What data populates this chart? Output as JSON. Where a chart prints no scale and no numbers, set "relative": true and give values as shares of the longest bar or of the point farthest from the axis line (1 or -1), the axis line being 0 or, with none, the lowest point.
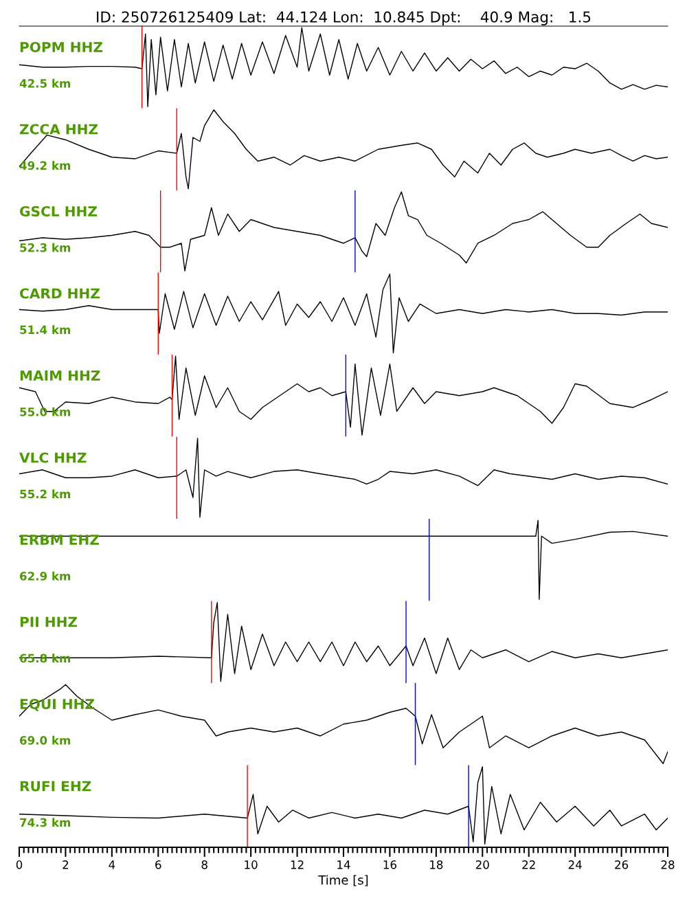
{
  "chart_data": [
    {
      "type": "line",
      "relative": true,
      "title": "ID: 250726125409 Lat:  44.124 Lon:  10.845 Dpt:    40.9 Mag:   1.5",
      "annotations": [
        "POPM HHZ",
        "42.5 km"
      ],
      "xlim": [
        0,
        28
      ],
      "tick_labels": false,
      "series": [
        {
          "color": "#000000",
          "x": [
            0,
            1,
            2,
            3,
            4,
            5,
            5.3,
            5.45,
            5.55,
            5.7,
            5.9,
            6.1,
            6.4,
            6.7,
            7.0,
            7.3,
            7.6,
            8.0,
            8.4,
            8.8,
            9.2,
            9.6,
            10.0,
            10.5,
            11.0,
            11.5,
            12.0,
            12.2,
            12.5,
            13.0,
            13.4,
            13.8,
            14.2,
            14.6,
            15.0,
            15.5,
            16.0,
            16.5,
            17.0,
            17.5,
            18.0,
            18.5,
            19.0,
            19.5,
            20.0,
            20.5,
            21.0,
            21.5,
            22.0,
            22.5,
            23.0,
            23.5,
            24.0,
            24.5,
            25.0,
            25.5,
            26.0,
            26.5,
            27.0,
            27.5,
            28.0
          ],
          "values": [
            0.53,
            0.5,
            0.5,
            0.51,
            0.51,
            0.5,
            0.48,
            0.92,
            0.0,
            0.85,
            0.15,
            0.88,
            0.2,
            0.85,
            0.25,
            0.8,
            0.3,
            0.82,
            0.32,
            0.78,
            0.35,
            0.8,
            0.4,
            0.82,
            0.42,
            0.9,
            0.5,
            1.0,
            0.45,
            0.92,
            0.4,
            0.85,
            0.35,
            0.8,
            0.45,
            0.75,
            0.4,
            0.7,
            0.45,
            0.68,
            0.45,
            0.62,
            0.45,
            0.6,
            0.48,
            0.58,
            0.42,
            0.5,
            0.38,
            0.45,
            0.4,
            0.5,
            0.48,
            0.55,
            0.45,
            0.3,
            0.22,
            0.28,
            0.22,
            0.27,
            0.25
          ]
        }
      ],
      "ref_lines": [
        {
          "axis": "x",
          "value": 5.3,
          "color": "#ff0000"
        }
      ]
    },
    {
      "type": "line",
      "relative": true,
      "annotations": [
        "ZCCA HHZ",
        "49.2 km"
      ],
      "xlim": [
        0,
        28
      ],
      "tick_labels": false,
      "series": [
        {
          "color": "#000000",
          "x": [
            0,
            0.5,
            1.2,
            2.0,
            3.0,
            4.0,
            5.0,
            6.0,
            6.8,
            7.0,
            7.2,
            7.3,
            7.5,
            7.8,
            8.0,
            8.4,
            8.8,
            9.3,
            9.8,
            10.3,
            11,
            11.7,
            12.3,
            13,
            13.8,
            14.5,
            15.5,
            16.5,
            17.2,
            17.8,
            18.3,
            18.8,
            19.2,
            19.8,
            20.3,
            20.8,
            21.3,
            21.8,
            22.3,
            22.8,
            23.5,
            24,
            24.7,
            25.5,
            26,
            26.5,
            27,
            27.5,
            28
          ],
          "values": [
            0.28,
            0.45,
            0.68,
            0.62,
            0.5,
            0.4,
            0.38,
            0.48,
            0.45,
            0.7,
            0.15,
            0.0,
            0.65,
            0.6,
            0.8,
            1.0,
            0.85,
            0.7,
            0.5,
            0.35,
            0.4,
            0.3,
            0.42,
            0.35,
            0.4,
            0.35,
            0.5,
            0.55,
            0.58,
            0.5,
            0.3,
            0.15,
            0.35,
            0.2,
            0.45,
            0.3,
            0.5,
            0.58,
            0.45,
            0.4,
            0.45,
            0.5,
            0.45,
            0.5,
            0.42,
            0.35,
            0.42,
            0.38,
            0.4
          ]
        }
      ],
      "ref_lines": [
        {
          "axis": "x",
          "value": 6.8,
          "color": "#ff0000"
        }
      ]
    },
    {
      "type": "line",
      "relative": true,
      "annotations": [
        "GSCL HHZ",
        "52.3 km"
      ],
      "xlim": [
        0,
        28
      ],
      "tick_labels": false,
      "series": [
        {
          "color": "#000000",
          "x": [
            0,
            1,
            2,
            3,
            4,
            5,
            5.6,
            6.1,
            6.5,
            7.0,
            7.15,
            7.4,
            8.0,
            8.3,
            8.6,
            9.0,
            9.5,
            10,
            11,
            12,
            13,
            14,
            14.5,
            14.8,
            15,
            15.4,
            15.8,
            16.2,
            16.5,
            16.8,
            17.2,
            17.6,
            18.2,
            19.0,
            19.3,
            19.8,
            20.5,
            21.3,
            22,
            22.6,
            23.2,
            23.8,
            24.5,
            25,
            25.5,
            26.2,
            26.8,
            27.3,
            28
          ],
          "values": [
            0.38,
            0.42,
            0.4,
            0.42,
            0.45,
            0.5,
            0.45,
            0.3,
            0.3,
            0.35,
            0.0,
            0.4,
            0.45,
            0.8,
            0.45,
            0.72,
            0.5,
            0.65,
            0.55,
            0.5,
            0.45,
            0.35,
            0.42,
            0.25,
            0.18,
            0.6,
            0.45,
            0.8,
            1.0,
            0.7,
            0.65,
            0.45,
            0.35,
            0.2,
            0.1,
            0.35,
            0.45,
            0.6,
            0.65,
            0.75,
            0.6,
            0.45,
            0.3,
            0.3,
            0.45,
            0.6,
            0.72,
            0.6,
            0.55
          ]
        }
      ],
      "ref_lines": [
        {
          "axis": "x",
          "value": 6.1,
          "color": "#ff0000"
        },
        {
          "axis": "x",
          "value": 14.5,
          "color": "#0000ff"
        }
      ]
    },
    {
      "type": "line",
      "relative": true,
      "annotations": [
        "CARD HHZ",
        "51.4 km"
      ],
      "xlim": [
        0,
        28
      ],
      "tick_labels": false,
      "series": [
        {
          "color": "#000000",
          "x": [
            0,
            1,
            2,
            3,
            4,
            5,
            6.0,
            6.05,
            6.3,
            6.7,
            7.1,
            7.5,
            8.0,
            8.5,
            9.0,
            9.5,
            10,
            10.5,
            11.2,
            11.5,
            12,
            12.5,
            13,
            13.5,
            14,
            14.5,
            15,
            15.4,
            15.7,
            16.0,
            16.15,
            16.4,
            16.8,
            17.3,
            18,
            19,
            20,
            21,
            22,
            23,
            24,
            25,
            26,
            27,
            28
          ],
          "values": [
            0.55,
            0.53,
            0.55,
            0.6,
            0.55,
            0.55,
            0.55,
            0.25,
            0.75,
            0.3,
            0.78,
            0.32,
            0.75,
            0.35,
            0.72,
            0.4,
            0.65,
            0.42,
            0.78,
            0.35,
            0.62,
            0.45,
            0.65,
            0.4,
            0.7,
            0.35,
            0.75,
            0.2,
            0.8,
            1.0,
            0.0,
            0.7,
            0.4,
            0.62,
            0.5,
            0.55,
            0.5,
            0.55,
            0.52,
            0.55,
            0.5,
            0.5,
            0.48,
            0.52,
            0.52
          ]
        }
      ],
      "ref_lines": [
        {
          "axis": "x",
          "value": 6.0,
          "color": "#ff0000"
        }
      ]
    },
    {
      "type": "line",
      "relative": true,
      "annotations": [
        "MAIM HHZ",
        "55.0 km"
      ],
      "xlim": [
        0,
        28
      ],
      "tick_labels": false,
      "series": [
        {
          "color": "#000000",
          "x": [
            0,
            0.7,
            1.1,
            1.5,
            2,
            3,
            4,
            5,
            6,
            6.5,
            6.6,
            6.75,
            6.9,
            7.2,
            7.6,
            8.0,
            8.5,
            9.0,
            9.5,
            10.0,
            10.5,
            11,
            11.5,
            12,
            12.5,
            13,
            13.5,
            14.1,
            14.3,
            14.5,
            14.8,
            15.2,
            15.6,
            16.0,
            16.3,
            17,
            17.5,
            18,
            19,
            20,
            20.5,
            21.5,
            22.5,
            23,
            23.5,
            24,
            24.5,
            25.5,
            26.5,
            27.3,
            28
          ],
          "values": [
            0.6,
            0.55,
            0.3,
            0.3,
            0.42,
            0.4,
            0.48,
            0.42,
            0.4,
            0.48,
            0.45,
            1.0,
            0.2,
            0.85,
            0.25,
            0.75,
            0.35,
            0.6,
            0.3,
            0.2,
            0.35,
            0.45,
            0.55,
            0.65,
            0.55,
            0.6,
            0.5,
            0.55,
            0.1,
            0.9,
            0.0,
            0.85,
            0.25,
            0.9,
            0.3,
            0.6,
            0.4,
            0.55,
            0.5,
            0.55,
            0.6,
            0.5,
            0.3,
            0.15,
            0.35,
            0.65,
            0.62,
            0.4,
            0.35,
            0.45,
            0.55
          ]
        }
      ],
      "ref_lines": [
        {
          "axis": "x",
          "value": 6.6,
          "color": "#ff0000"
        },
        {
          "axis": "x",
          "value": 14.1,
          "color": "#0000ff"
        }
      ]
    },
    {
      "type": "line",
      "relative": true,
      "annotations": [
        "VLC HHZ",
        "55.2 km"
      ],
      "xlim": [
        0,
        28
      ],
      "tick_labels": false,
      "series": [
        {
          "color": "#000000",
          "x": [
            0,
            1,
            2,
            3,
            4,
            5,
            6,
            6.8,
            7.2,
            7.5,
            7.7,
            7.8,
            8.0,
            8.5,
            9,
            10,
            11,
            12,
            13,
            14.5,
            15,
            15.5,
            16,
            17,
            18,
            19,
            19.8,
            20.5,
            21.2,
            22,
            23,
            24,
            25,
            26,
            27,
            28
          ],
          "values": [
            0.55,
            0.6,
            0.5,
            0.5,
            0.52,
            0.6,
            0.5,
            0.52,
            0.6,
            0.25,
            1.0,
            0.0,
            0.6,
            0.52,
            0.58,
            0.5,
            0.58,
            0.6,
            0.55,
            0.48,
            0.42,
            0.48,
            0.58,
            0.55,
            0.6,
            0.52,
            0.4,
            0.6,
            0.55,
            0.52,
            0.48,
            0.55,
            0.48,
            0.52,
            0.5,
            0.42
          ]
        }
      ],
      "ref_lines": [
        {
          "axis": "x",
          "value": 6.8,
          "color": "#ff0000"
        }
      ]
    },
    {
      "type": "line",
      "relative": true,
      "annotations": [
        "ERBM EHZ",
        "62.9 km"
      ],
      "xlim": [
        0,
        28
      ],
      "tick_labels": false,
      "series": [
        {
          "color": "#000000",
          "x": [
            0,
            5,
            10,
            15,
            17.7,
            20,
            22.3,
            22.4,
            22.45,
            22.55,
            23,
            24,
            25.5,
            26.5,
            28
          ],
          "values": [
            0.8,
            0.8,
            0.8,
            0.8,
            0.8,
            0.8,
            0.8,
            1.0,
            0.0,
            0.8,
            0.71,
            0.76,
            0.85,
            0.86,
            0.8
          ]
        }
      ],
      "ref_lines": [
        {
          "axis": "x",
          "value": 17.7,
          "color": "#0000ff"
        }
      ]
    },
    {
      "type": "line",
      "relative": true,
      "annotations": [
        "PII HHZ",
        "65.8 km"
      ],
      "xlim": [
        0,
        28
      ],
      "tick_labels": false,
      "series": [
        {
          "color": "#000000",
          "x": [
            0,
            2,
            4,
            6,
            8.3,
            8.4,
            8.55,
            8.7,
            9.0,
            9.3,
            9.6,
            10,
            10.5,
            11,
            11.5,
            12,
            12.5,
            13,
            13.5,
            14,
            14.5,
            15,
            15.5,
            16,
            16.7,
            17,
            17.5,
            18,
            18.5,
            19,
            19.5,
            20,
            21,
            22,
            23,
            24,
            25,
            26,
            27,
            28
          ],
          "values": [
            0.3,
            0.3,
            0.3,
            0.32,
            0.3,
            0.75,
            1.0,
            0.0,
            0.85,
            0.1,
            0.7,
            0.15,
            0.6,
            0.2,
            0.5,
            0.25,
            0.5,
            0.25,
            0.5,
            0.2,
            0.5,
            0.25,
            0.45,
            0.2,
            0.45,
            0.2,
            0.55,
            0.1,
            0.55,
            0.15,
            0.4,
            0.3,
            0.4,
            0.25,
            0.38,
            0.3,
            0.35,
            0.3,
            0.35,
            0.4
          ]
        }
      ],
      "ref_lines": [
        {
          "axis": "x",
          "value": 8.3,
          "color": "#ff0000"
        },
        {
          "axis": "x",
          "value": 16.7,
          "color": "#0000ff"
        }
      ]
    },
    {
      "type": "line",
      "relative": true,
      "annotations": [
        "EQUI HHZ",
        "69.0 km"
      ],
      "xlim": [
        0,
        28
      ],
      "tick_labels": false,
      "series": [
        {
          "color": "#000000",
          "x": [
            0,
            0.5,
            1,
            1.8,
            2.0,
            2.5,
            3.2,
            4,
            5,
            6,
            7,
            8,
            8.5,
            9,
            10,
            11,
            12,
            13,
            14,
            15,
            16,
            16.7,
            17.1,
            17.4,
            17.8,
            18.3,
            19,
            20,
            20.3,
            21,
            22,
            23,
            24,
            25,
            26,
            27,
            27.8,
            28
          ],
          "values": [
            0.6,
            0.75,
            0.8,
            0.95,
            1.0,
            0.85,
            0.7,
            0.55,
            0.62,
            0.68,
            0.6,
            0.55,
            0.35,
            0.4,
            0.45,
            0.4,
            0.45,
            0.35,
            0.5,
            0.55,
            0.65,
            0.7,
            0.6,
            0.25,
            0.62,
            0.2,
            0.4,
            0.6,
            0.2,
            0.35,
            0.2,
            0.35,
            0.45,
            0.35,
            0.4,
            0.3,
            0.0,
            0.15
          ]
        }
      ],
      "ref_lines": [
        {
          "axis": "x",
          "value": 17.1,
          "color": "#0000ff"
        }
      ]
    },
    {
      "type": "line",
      "relative": true,
      "annotations": [
        "RUFI EHZ",
        "74.3 km"
      ],
      "xlim": [
        0,
        28
      ],
      "xlabel": "Time [s]",
      "tick_labels": "x",
      "xticks": [
        0,
        {
          "value": 0.2,
          "label": null
        },
        {
          "value": 0.4,
          "label": null
        },
        {
          "value": 0.6,
          "label": null
        },
        {
          "value": 0.8,
          "label": null
        },
        {
          "value": 1,
          "label": null
        },
        {
          "value": 1.2,
          "label": null
        },
        {
          "value": 1.4,
          "label": null
        },
        {
          "value": 1.6,
          "label": null
        },
        {
          "value": 1.8,
          "label": null
        },
        2,
        {
          "value": 2.2,
          "label": null
        },
        {
          "value": 2.4,
          "label": null
        },
        {
          "value": 2.6,
          "label": null
        },
        {
          "value": 2.8,
          "label": null
        },
        {
          "value": 3,
          "label": null
        },
        {
          "value": 3.2,
          "label": null
        },
        {
          "value": 3.4,
          "label": null
        },
        {
          "value": 3.6,
          "label": null
        },
        {
          "value": 3.8,
          "label": null
        },
        4,
        {
          "value": 4.2,
          "label": null
        },
        {
          "value": 4.4,
          "label": null
        },
        {
          "value": 4.6,
          "label": null
        },
        {
          "value": 4.8,
          "label": null
        },
        {
          "value": 5,
          "label": null
        },
        {
          "value": 5.2,
          "label": null
        },
        {
          "value": 5.4,
          "label": null
        },
        {
          "value": 5.6,
          "label": null
        },
        {
          "value": 5.8,
          "label": null
        },
        6,
        {
          "value": 6.2,
          "label": null
        },
        {
          "value": 6.4,
          "label": null
        },
        {
          "value": 6.6,
          "label": null
        },
        {
          "value": 6.8,
          "label": null
        },
        {
          "value": 7,
          "label": null
        },
        {
          "value": 7.2,
          "label": null
        },
        {
          "value": 7.4,
          "label": null
        },
        {
          "value": 7.6,
          "label": null
        },
        {
          "value": 7.8,
          "label": null
        },
        8,
        {
          "value": 8.2,
          "label": null
        },
        {
          "value": 8.4,
          "label": null
        },
        {
          "value": 8.6,
          "label": null
        },
        {
          "value": 8.8,
          "label": null
        },
        {
          "value": 9,
          "label": null
        },
        {
          "value": 9.2,
          "label": null
        },
        {
          "value": 9.4,
          "label": null
        },
        {
          "value": 9.6,
          "label": null
        },
        {
          "value": 9.8,
          "label": null
        },
        10,
        {
          "value": 10.2,
          "label": null
        },
        {
          "value": 10.4,
          "label": null
        },
        {
          "value": 10.6,
          "label": null
        },
        {
          "value": 10.8,
          "label": null
        },
        {
          "value": 11,
          "label": null
        },
        {
          "value": 11.2,
          "label": null
        },
        {
          "value": 11.4,
          "label": null
        },
        {
          "value": 11.6,
          "label": null
        },
        {
          "value": 11.8,
          "label": null
        },
        12,
        {
          "value": 12.2,
          "label": null
        },
        {
          "value": 12.4,
          "label": null
        },
        {
          "value": 12.6,
          "label": null
        },
        {
          "value": 12.8,
          "label": null
        },
        {
          "value": 13,
          "label": null
        },
        {
          "value": 13.2,
          "label": null
        },
        {
          "value": 13.4,
          "label": null
        },
        {
          "value": 13.6,
          "label": null
        },
        {
          "value": 13.8,
          "label": null
        },
        14,
        {
          "value": 14.2,
          "label": null
        },
        {
          "value": 14.4,
          "label": null
        },
        {
          "value": 14.6,
          "label": null
        },
        {
          "value": 14.8,
          "label": null
        },
        {
          "value": 15,
          "label": null
        },
        {
          "value": 15.2,
          "label": null
        },
        {
          "value": 15.4,
          "label": null
        },
        {
          "value": 15.6,
          "label": null
        },
        {
          "value": 15.8,
          "label": null
        },
        16,
        {
          "value": 16.2,
          "label": null
        },
        {
          "value": 16.4,
          "label": null
        },
        {
          "value": 16.6,
          "label": null
        },
        {
          "value": 16.8,
          "label": null
        },
        {
          "value": 17,
          "label": null
        },
        {
          "value": 17.2,
          "label": null
        },
        {
          "value": 17.4,
          "label": null
        },
        {
          "value": 17.6,
          "label": null
        },
        {
          "value": 17.8,
          "label": null
        },
        18,
        {
          "value": 18.2,
          "label": null
        },
        {
          "value": 18.4,
          "label": null
        },
        {
          "value": 18.6,
          "label": null
        },
        {
          "value": 18.8,
          "label": null
        },
        {
          "value": 19,
          "label": null
        },
        {
          "value": 19.2,
          "label": null
        },
        {
          "value": 19.4,
          "label": null
        },
        {
          "value": 19.6,
          "label": null
        },
        {
          "value": 19.8,
          "label": null
        },
        20,
        {
          "value": 20.2,
          "label": null
        },
        {
          "value": 20.4,
          "label": null
        },
        {
          "value": 20.6,
          "label": null
        },
        {
          "value": 20.8,
          "label": null
        },
        {
          "value": 21,
          "label": null
        },
        {
          "value": 21.2,
          "label": null
        },
        {
          "value": 21.4,
          "label": null
        },
        {
          "value": 21.6,
          "label": null
        },
        {
          "value": 21.8,
          "label": null
        },
        22,
        {
          "value": 22.2,
          "label": null
        },
        {
          "value": 22.4,
          "label": null
        },
        {
          "value": 22.6,
          "label": null
        },
        {
          "value": 22.8,
          "label": null
        },
        {
          "value": 23,
          "label": null
        },
        {
          "value": 23.2,
          "label": null
        },
        {
          "value": 23.4,
          "label": null
        },
        {
          "value": 23.6,
          "label": null
        },
        {
          "value": 23.8,
          "label": null
        },
        24,
        {
          "value": 24.2,
          "label": null
        },
        {
          "value": 24.4,
          "label": null
        },
        {
          "value": 24.6,
          "label": null
        },
        {
          "value": 24.8,
          "label": null
        },
        {
          "value": 25,
          "label": null
        },
        {
          "value": 25.2,
          "label": null
        },
        {
          "value": 25.4,
          "label": null
        },
        {
          "value": 25.6,
          "label": null
        },
        {
          "value": 25.8,
          "label": null
        },
        26,
        {
          "value": 26.2,
          "label": null
        },
        {
          "value": 26.4,
          "label": null
        },
        {
          "value": 26.6,
          "label": null
        },
        {
          "value": 26.8,
          "label": null
        },
        {
          "value": 27,
          "label": null
        },
        {
          "value": 27.2,
          "label": null
        },
        {
          "value": 27.4,
          "label": null
        },
        {
          "value": 27.6,
          "label": null
        },
        {
          "value": 27.8,
          "label": null
        },
        28
      ],
      "series": [
        {
          "color": "#000000",
          "x": [
            0,
            2,
            4,
            6,
            8,
            9.85,
            10.1,
            10.3,
            10.7,
            11.2,
            11.8,
            12.5,
            13.5,
            14.5,
            15.5,
            16.5,
            17.5,
            18.5,
            19.4,
            19.6,
            19.8,
            20.0,
            20.1,
            20.4,
            20.8,
            21.2,
            21.8,
            22.5,
            23.2,
            24,
            24.8,
            25.5,
            26,
            27,
            27.5,
            28
          ],
          "values": [
            0.4,
            0.38,
            0.36,
            0.35,
            0.4,
            0.35,
            0.65,
            0.15,
            0.5,
            0.3,
            0.45,
            0.35,
            0.42,
            0.35,
            0.4,
            0.35,
            0.45,
            0.4,
            0.5,
            0.05,
            0.8,
            1.0,
            0.02,
            0.75,
            0.15,
            0.65,
            0.2,
            0.55,
            0.3,
            0.5,
            0.25,
            0.45,
            0.25,
            0.4,
            0.2,
            0.35
          ]
        }
      ],
      "ref_lines": [
        {
          "axis": "x",
          "value": 9.85,
          "color": "#ff0000"
        },
        {
          "axis": "x",
          "value": 19.4,
          "color": "#0000ff"
        }
      ]
    }
  ]
}
